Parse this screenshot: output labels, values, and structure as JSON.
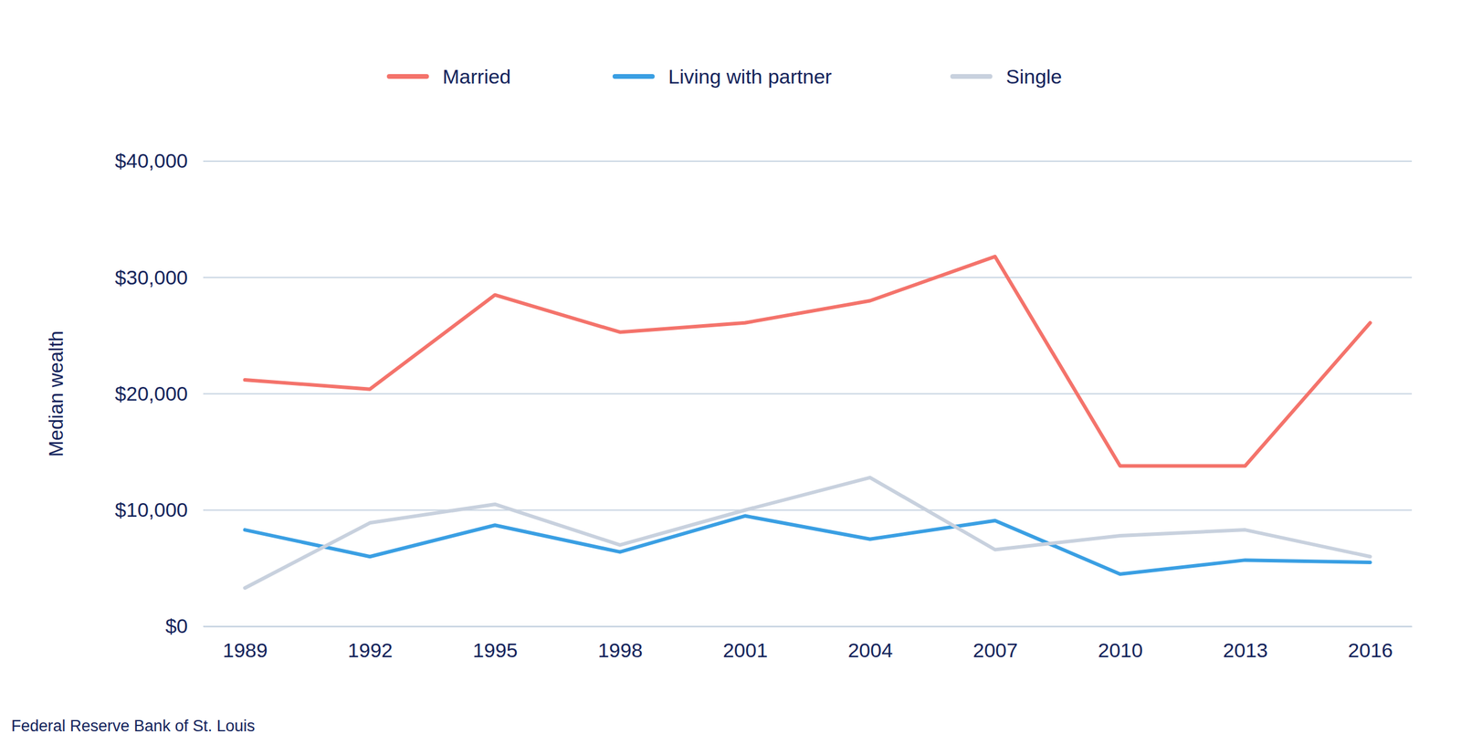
{
  "chart_data": {
    "type": "line",
    "y_label": "Median wealth",
    "source": "Federal Reserve Bank of St. Louis",
    "x": [
      1989,
      1992,
      1995,
      1998,
      2001,
      2004,
      2007,
      2010,
      2013,
      2016
    ],
    "xlim": [
      1988,
      2017
    ],
    "xticks": [
      1989,
      1992,
      1995,
      1998,
      2001,
      2004,
      2007,
      2010,
      2013,
      2016
    ],
    "ylim": [
      0,
      40000
    ],
    "yticks": [
      {
        "value": 0,
        "label": "$0"
      },
      {
        "value": 10000,
        "label": "$10,000"
      },
      {
        "value": 20000,
        "label": "$20,000"
      },
      {
        "value": 30000,
        "label": "$30,000"
      },
      {
        "value": 40000,
        "label": "$40,000"
      }
    ],
    "grid": true,
    "legend": "top",
    "series": [
      {
        "name": "Married",
        "color": "#f4736b",
        "values": [
          21200,
          20400,
          28500,
          25300,
          26100,
          28000,
          31800,
          13800,
          13800,
          26100
        ]
      },
      {
        "name": "Living with partner",
        "color": "#3a9fe3",
        "values": [
          8300,
          6000,
          8700,
          6400,
          9500,
          7500,
          9100,
          4500,
          5700,
          5500
        ]
      },
      {
        "name": "Single",
        "color": "#c8d1de",
        "values": [
          3300,
          8900,
          10500,
          7000,
          10000,
          12800,
          6600,
          7800,
          8300,
          6000
        ]
      }
    ]
  }
}
